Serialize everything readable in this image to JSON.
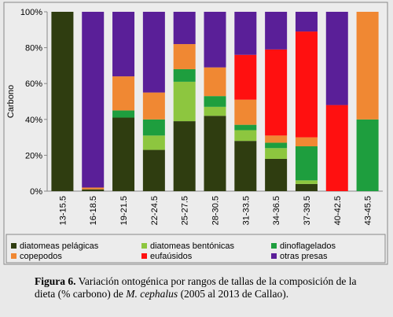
{
  "chart_data": {
    "type": "stacked_bar",
    "ylabel": "Carbono",
    "categories": [
      "13-15.5",
      "16-18.5",
      "19-21.5",
      "22-24.5",
      "25-27.5",
      "28-30.5",
      "31-33.5",
      "34-36.5",
      "37-39.5",
      "40-42.5",
      "43-45.5"
    ],
    "series": [
      {
        "name": "diatomeas pelágicas",
        "color": "#2f3d10",
        "values": [
          100,
          1,
          41,
          23,
          39,
          42,
          28,
          18,
          4,
          0,
          0
        ]
      },
      {
        "name": "diatomeas bentónicas",
        "color": "#8dc63f",
        "values": [
          0,
          0,
          0,
          8,
          22,
          5,
          6,
          6,
          2,
          0,
          0
        ]
      },
      {
        "name": "dinoflagelados",
        "color": "#1e9e3e",
        "values": [
          0,
          0,
          4,
          9,
          7,
          6,
          3,
          3,
          19,
          0,
          40
        ]
      },
      {
        "name": "copepodos",
        "color": "#f08833",
        "values": [
          0,
          1,
          19,
          15,
          14,
          16,
          14,
          4,
          5,
          0,
          60
        ]
      },
      {
        "name": "eufaúsidos",
        "color": "#ff1010",
        "values": [
          0,
          0,
          0,
          0,
          0,
          0,
          25,
          48,
          59,
          48,
          0
        ]
      },
      {
        "name": "otras presas",
        "color": "#5a1f98",
        "values": [
          0,
          98,
          36,
          45,
          18,
          31,
          24,
          21,
          11,
          52,
          0
        ]
      }
    ],
    "ylim": [
      0,
      100
    ],
    "yticks": [
      {
        "value": 0,
        "label": "0%"
      },
      {
        "value": 20,
        "label": "20%"
      },
      {
        "value": 40,
        "label": "40%"
      },
      {
        "value": 60,
        "label": "60%"
      },
      {
        "value": 80,
        "label": "80%"
      },
      {
        "value": 100,
        "label": "100%"
      }
    ]
  },
  "caption": {
    "label": "Figura 6.",
    "text": " Variación ontogénica por rangos de  tallas de la composición de la dieta (% carbono) de ",
    "species": "M. cephalus",
    "tail": " (2005 al 2013 de Callao)."
  }
}
